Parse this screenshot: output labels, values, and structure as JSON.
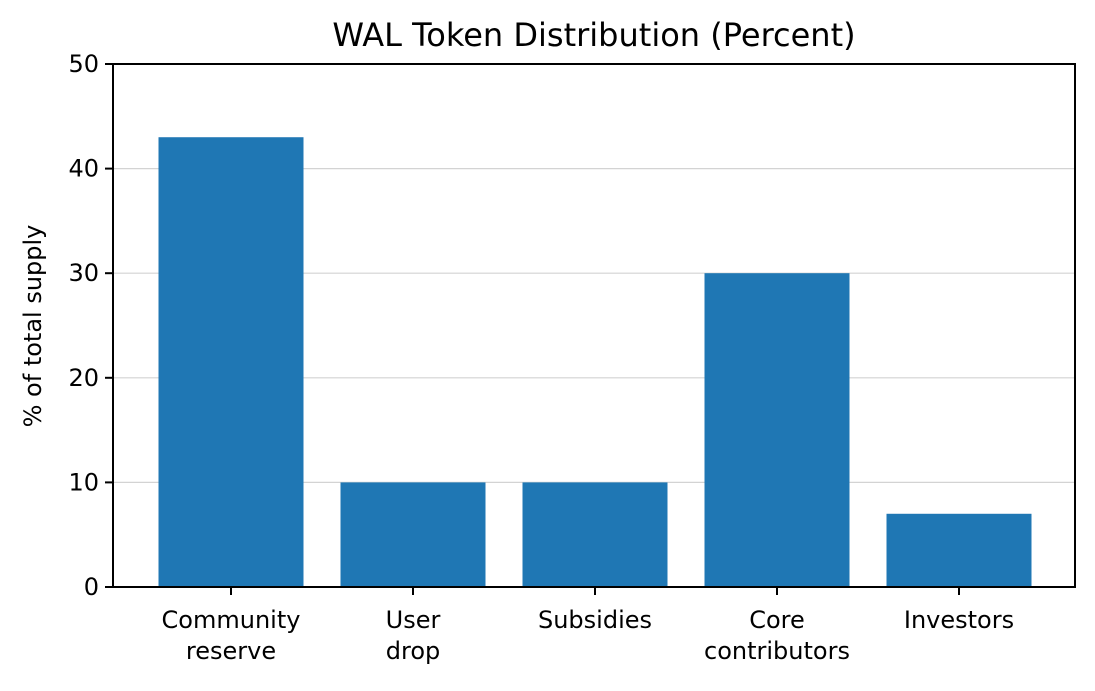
{
  "chart_data": {
    "type": "bar",
    "title": "WAL Token Distribution (Percent)",
    "xlabel": "",
    "ylabel": "% of total supply",
    "categories": [
      [
        "Community",
        "reserve"
      ],
      [
        "User",
        "drop"
      ],
      [
        "Subsidies"
      ],
      [
        "Core",
        "contributors"
      ],
      [
        "Investors"
      ]
    ],
    "values": [
      43,
      10,
      10,
      30,
      7
    ],
    "ylim": [
      0,
      50
    ],
    "yticks": [
      "0",
      "10",
      "20",
      "30",
      "40",
      "50"
    ],
    "ytick_values": [
      0,
      10,
      20,
      30,
      40,
      50
    ],
    "grid": "y",
    "bar_color": "#1f77b4"
  }
}
